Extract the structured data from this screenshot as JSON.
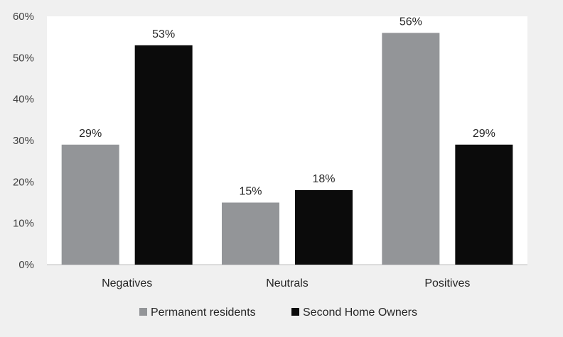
{
  "chart_data": {
    "type": "bar",
    "categories": [
      "Negatives",
      "Neutrals",
      "Positives"
    ],
    "series": [
      {
        "name": "Permanent residents",
        "values": [
          0.29,
          0.15,
          0.56
        ],
        "labels": [
          "29%",
          "15%",
          "56%"
        ],
        "color": "#939598"
      },
      {
        "name": "Second Home Owners",
        "values": [
          0.53,
          0.18,
          0.29
        ],
        "labels": [
          "53%",
          "18%",
          "29%"
        ],
        "color": "#0b0b0b"
      }
    ],
    "y_ticks": [
      {
        "value": 0,
        "label": "0%"
      },
      {
        "value": 0.1,
        "label": "10%"
      },
      {
        "value": 0.2,
        "label": "20%"
      },
      {
        "value": 0.3,
        "label": "30%"
      },
      {
        "value": 0.4,
        "label": "40%"
      },
      {
        "value": 0.5,
        "label": "50%"
      },
      {
        "value": 0.6,
        "label": "60%"
      }
    ],
    "ylim": [
      0,
      0.6
    ],
    "grid": false,
    "legend_position": "bottom",
    "plot_background": "#ffffff",
    "page_background": "#f0f0f0"
  }
}
